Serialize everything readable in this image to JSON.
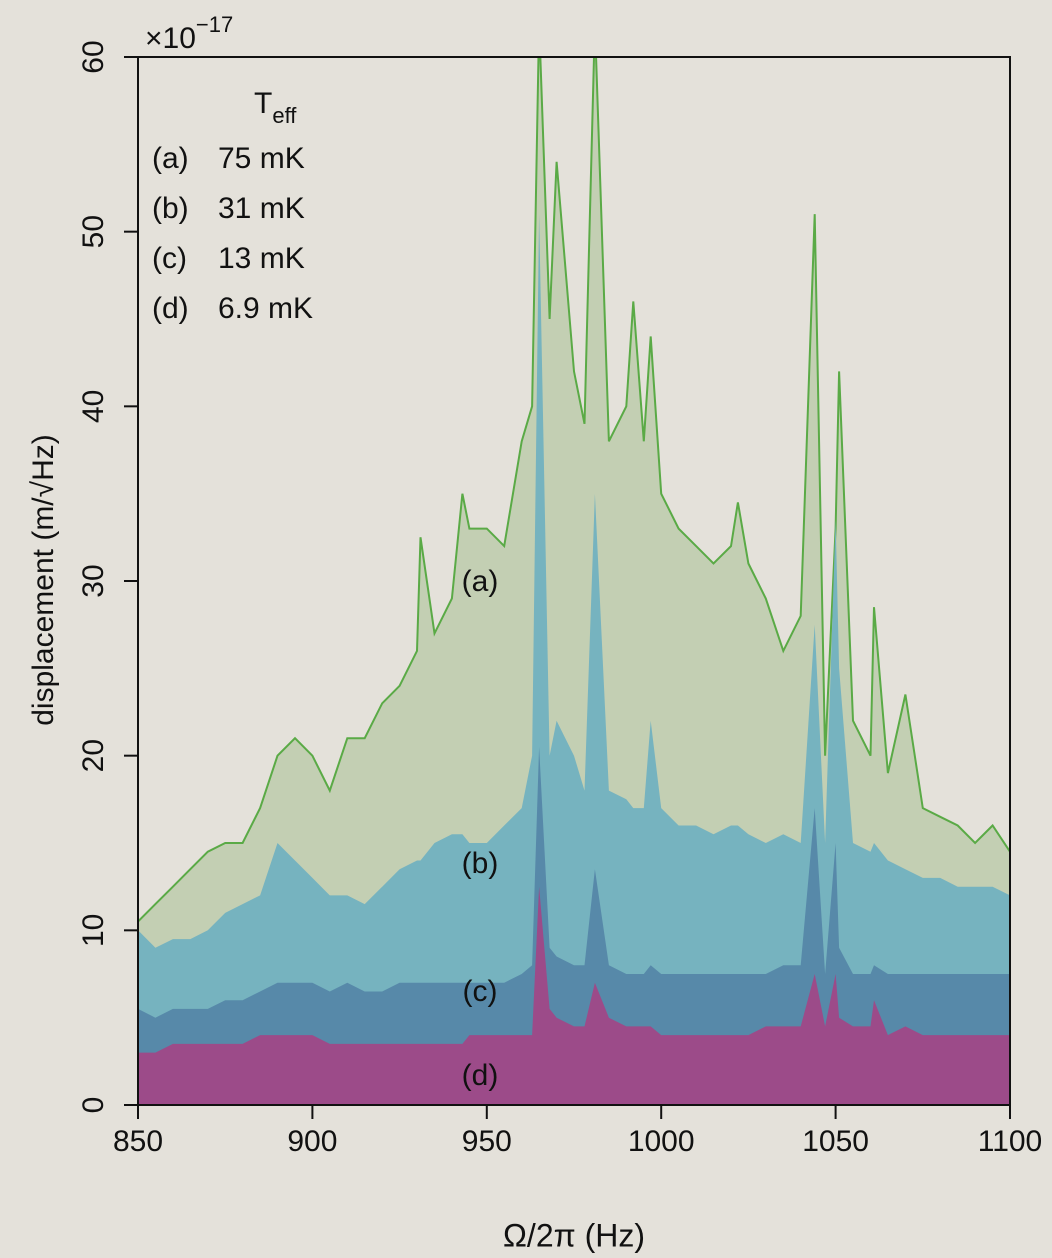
{
  "chart_data": {
    "type": "area",
    "y_multiplier": {
      "base": "×10",
      "exp": "−17"
    },
    "ylabel": "displacement (m/√Hz)",
    "xlabel": "Ω/2π (Hz)",
    "legend_title": {
      "main": "T",
      "sub": "eff"
    },
    "xlim": [
      850,
      1100
    ],
    "xticks": [
      850,
      900,
      950,
      1000,
      1050,
      1100
    ],
    "ylim": [
      0,
      60
    ],
    "yticks": [
      0,
      10,
      20,
      30,
      40,
      50,
      60
    ],
    "x": [
      850,
      855,
      860,
      865,
      870,
      875,
      880,
      885,
      890,
      895,
      900,
      905,
      910,
      915,
      920,
      925,
      930,
      931,
      935,
      940,
      943,
      945,
      950,
      955,
      960,
      963,
      965,
      968,
      970,
      975,
      978,
      981,
      985,
      990,
      992,
      995,
      997,
      1000,
      1005,
      1010,
      1015,
      1020,
      1022,
      1025,
      1030,
      1035,
      1040,
      1044,
      1047,
      1050,
      1051,
      1055,
      1060,
      1061,
      1065,
      1070,
      1075,
      1080,
      1085,
      1090,
      1095,
      1100
    ],
    "series": [
      {
        "name": "(a)",
        "temperature": "75 mK",
        "color": "#c3cfb3",
        "line_color": "#5aaa46",
        "values": [
          10.5,
          11.5,
          12.5,
          13.5,
          14.5,
          15,
          15,
          17,
          20,
          21,
          20,
          18,
          21,
          21,
          23,
          24,
          26,
          32.5,
          27,
          29,
          35,
          33,
          33,
          32,
          38,
          40,
          62,
          45,
          54,
          42,
          39,
          62,
          38,
          40,
          46,
          38,
          44,
          35,
          33,
          32,
          31,
          32,
          34.5,
          31,
          29,
          26,
          28,
          51,
          20,
          33,
          42,
          22,
          20,
          28.5,
          19,
          23.5,
          17,
          16.5,
          16,
          15,
          16,
          14.5
        ]
      },
      {
        "name": "(b)",
        "temperature": "31 mK",
        "color": "#76b3bf",
        "values": [
          10,
          9,
          9.5,
          9.5,
          10,
          11,
          11.5,
          12,
          15,
          14,
          13,
          12,
          12,
          11.5,
          12.5,
          13.5,
          14,
          14,
          15,
          15.5,
          15.5,
          15,
          15,
          16,
          17,
          20,
          51,
          20,
          22,
          20,
          18,
          35,
          18,
          17.5,
          17,
          17,
          22,
          17,
          16,
          16,
          15.5,
          16,
          16,
          15.5,
          15,
          15.5,
          15,
          27.5,
          15,
          33.5,
          25,
          15,
          14.5,
          15,
          14,
          13.5,
          13,
          13,
          12.5,
          12.5,
          12.5,
          12
        ]
      },
      {
        "name": "(c)",
        "temperature": "13 mK",
        "color": "#5789a9",
        "values": [
          5.5,
          5,
          5.5,
          5.5,
          5.5,
          6,
          6,
          6.5,
          7,
          7,
          7,
          6.5,
          7,
          6.5,
          6.5,
          7,
          7,
          7,
          7,
          7,
          7,
          7,
          7,
          7,
          7.5,
          8,
          20.5,
          9,
          8.5,
          8,
          8,
          13.5,
          8,
          7.5,
          7.5,
          7.5,
          8,
          7.5,
          7.5,
          7.5,
          7.5,
          7.5,
          7.5,
          7.5,
          7.5,
          8,
          8,
          17,
          7.5,
          15,
          9,
          7.5,
          7.5,
          8,
          7.5,
          7.5,
          7.5,
          7.5,
          7.5,
          7.5,
          7.5,
          7.5
        ]
      },
      {
        "name": "(d)",
        "temperature": "6.9 mK",
        "color": "#9c4b89",
        "values": [
          3,
          3,
          3.5,
          3.5,
          3.5,
          3.5,
          3.5,
          4,
          4,
          4,
          4,
          3.5,
          3.5,
          3.5,
          3.5,
          3.5,
          3.5,
          3.5,
          3.5,
          3.5,
          3.5,
          4,
          4,
          4,
          4,
          4,
          12.5,
          5.5,
          5,
          4.5,
          4.5,
          7,
          5,
          4.5,
          4.5,
          4.5,
          4.5,
          4,
          4,
          4,
          4,
          4,
          4,
          4,
          4.5,
          4.5,
          4.5,
          7.5,
          4.5,
          7.5,
          5,
          4.5,
          4.5,
          6,
          4,
          4.5,
          4,
          4,
          4,
          4,
          4,
          4
        ]
      }
    ]
  }
}
